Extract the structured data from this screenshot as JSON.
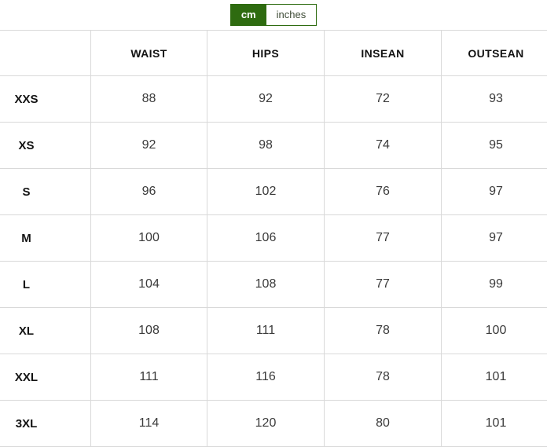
{
  "unit_toggle": {
    "options": [
      {
        "label": "cm",
        "active": true
      },
      {
        "label": "inches",
        "active": false
      }
    ]
  },
  "colors": {
    "accent_green": "#2e6b10",
    "border_gray": "#d9d9d9"
  },
  "table": {
    "columns": [
      "",
      "WAIST",
      "HIPS",
      "INSEAN",
      "OUTSEAN"
    ],
    "rows": [
      {
        "size": "XXS",
        "values": [
          "88",
          "92",
          "72",
          "93"
        ]
      },
      {
        "size": "XS",
        "values": [
          "92",
          "98",
          "74",
          "95"
        ]
      },
      {
        "size": "S",
        "values": [
          "96",
          "102",
          "76",
          "97"
        ]
      },
      {
        "size": "M",
        "values": [
          "100",
          "106",
          "77",
          "97"
        ]
      },
      {
        "size": "L",
        "values": [
          "104",
          "108",
          "77",
          "99"
        ]
      },
      {
        "size": "XL",
        "values": [
          "108",
          "111",
          "78",
          "100"
        ]
      },
      {
        "size": "XXL",
        "values": [
          "111",
          "116",
          "78",
          "101"
        ]
      },
      {
        "size": "3XL",
        "values": [
          "114",
          "120",
          "80",
          "101"
        ]
      }
    ]
  }
}
